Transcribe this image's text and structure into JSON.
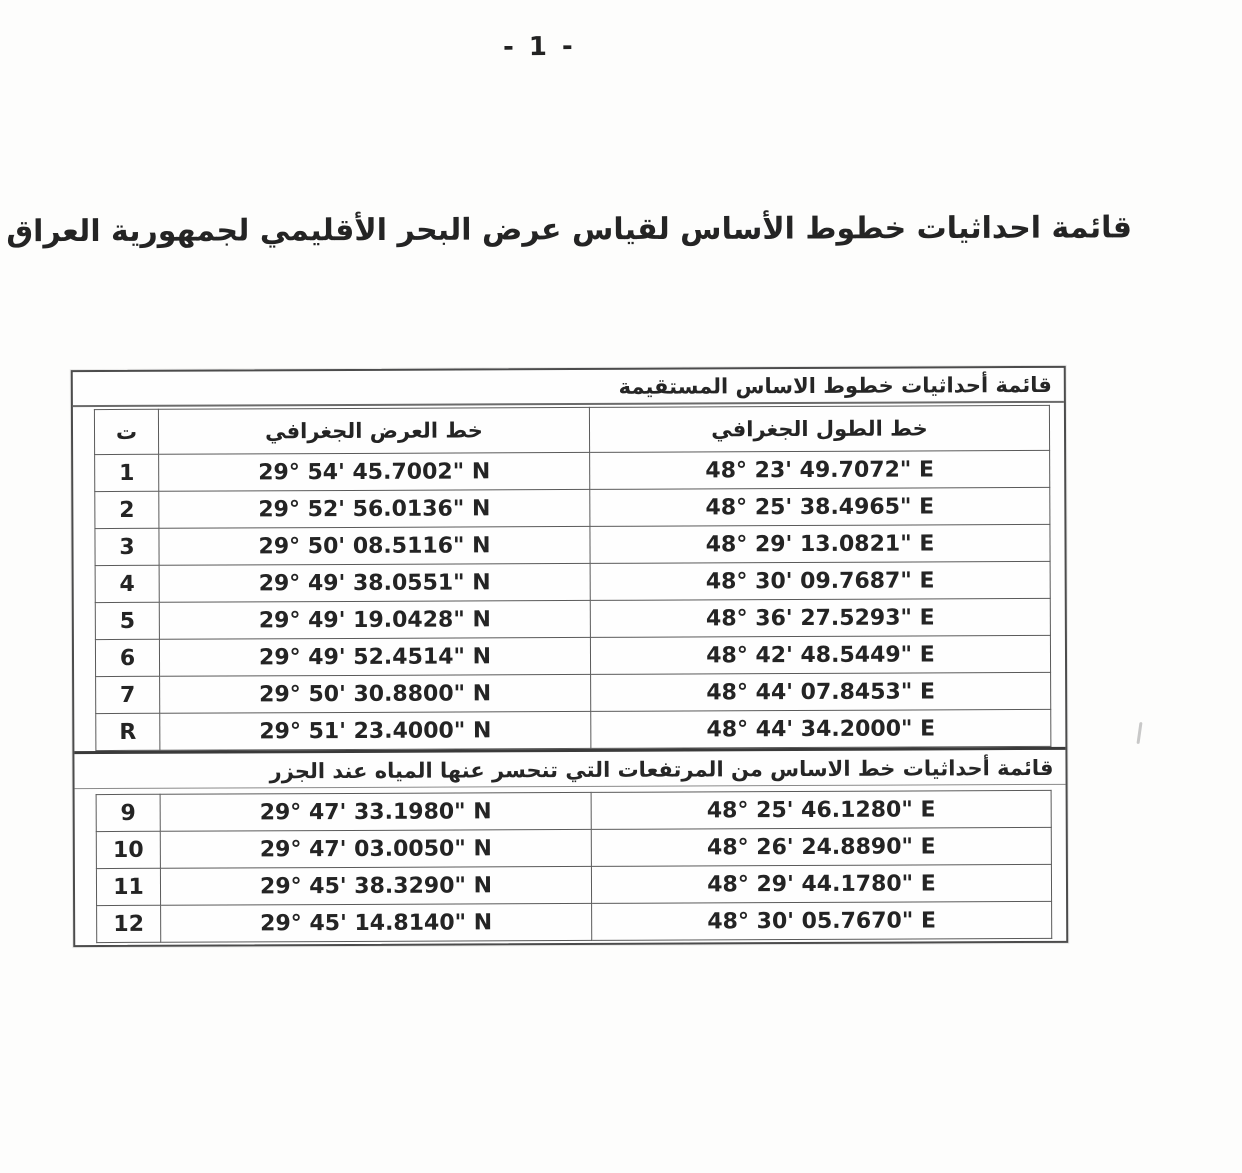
{
  "page_number": "- 1 -",
  "title": "قائمة احداثيات خطوط الأساس لقياس عرض البحر الأقليمي لجمهورية العراق",
  "columns": {
    "index": "ت",
    "latitude": "خط العرض الجغرافي",
    "longitude": "خط الطول الجغرافي"
  },
  "straight": {
    "section_title": "قائمة أحداثيات خطوط الاساس المستقيمة",
    "rows": [
      {
        "no": "1",
        "latitude": "29° 54' 45.7002\" N",
        "longitude": "48° 23' 49.7072\" E"
      },
      {
        "no": "2",
        "latitude": "29° 52' 56.0136\" N",
        "longitude": "48° 25' 38.4965\" E"
      },
      {
        "no": "3",
        "latitude": "29° 50' 08.5116\" N",
        "longitude": "48° 29' 13.0821\" E"
      },
      {
        "no": "4",
        "latitude": "29° 49' 38.0551\" N",
        "longitude": "48° 30' 09.7687\" E"
      },
      {
        "no": "5",
        "latitude": "29° 49' 19.0428\" N",
        "longitude": "48° 36' 27.5293\" E"
      },
      {
        "no": "6",
        "latitude": "29° 49' 52.4514\" N",
        "longitude": "48° 42' 48.5449\" E"
      },
      {
        "no": "7",
        "latitude": "29° 50' 30.8800\" N",
        "longitude": "48° 44' 07.8453\" E"
      },
      {
        "no": "R",
        "latitude": "29° 51' 23.4000\" N",
        "longitude": "48° 44' 34.2000\" E"
      }
    ]
  },
  "lowtide": {
    "section_title": "قائمة أحداثيات خط الاساس من المرتفعات التي تنحسر عنها المياه عند الجزر",
    "rows": [
      {
        "no": "9",
        "latitude": "29° 47' 33.1980\" N",
        "longitude": "48° 25' 46.1280\" E"
      },
      {
        "no": "10",
        "latitude": "29° 47' 03.0050\" N",
        "longitude": "48° 26' 24.8890\" E"
      },
      {
        "no": "11",
        "latitude": "29° 45' 38.3290\" N",
        "longitude": "48° 29' 44.1780\" E"
      },
      {
        "no": "12",
        "latitude": "29° 45' 14.8140\" N",
        "longitude": "48° 30' 05.7670\" E"
      }
    ]
  }
}
